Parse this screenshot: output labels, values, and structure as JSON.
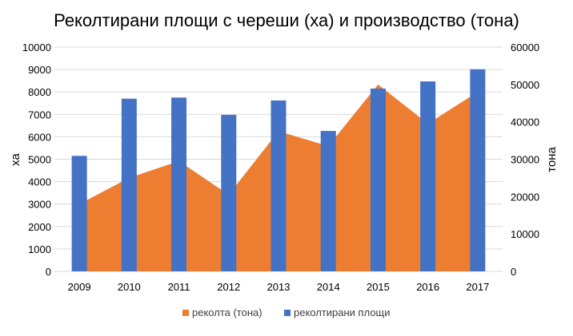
{
  "chart_data": {
    "type": "bar",
    "title": "Реколтирани площи с череши (ха) и производство (тона)",
    "categories": [
      "2009",
      "2010",
      "2011",
      "2012",
      "2013",
      "2014",
      "2015",
      "2016",
      "2017"
    ],
    "y_left": {
      "label": "ха",
      "range": [
        0,
        10000
      ],
      "ticks": [
        0,
        1000,
        2000,
        3000,
        4000,
        5000,
        6000,
        7000,
        8000,
        9000,
        10000
      ]
    },
    "y_right": {
      "label": "тона",
      "range": [
        0,
        60000
      ],
      "ticks": [
        0,
        10000,
        20000,
        30000,
        40000,
        50000,
        60000
      ]
    },
    "series": [
      {
        "name": "реколта (тона)",
        "type": "area",
        "axis": "right",
        "color": "#ED7D31",
        "values": [
          18000,
          25000,
          29500,
          20500,
          37500,
          33500,
          50000,
          39500,
          48000
        ]
      },
      {
        "name": "реколтирани площи",
        "type": "bar",
        "axis": "left",
        "color": "#4472C4",
        "values": [
          5150,
          7700,
          7750,
          6980,
          7620,
          6260,
          8150,
          8470,
          9010
        ]
      }
    ],
    "legend_position": "bottom",
    "grid": true
  }
}
